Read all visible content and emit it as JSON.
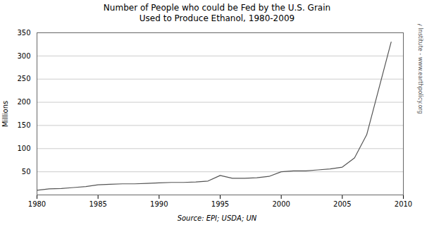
{
  "chart_data": {
    "type": "line",
    "title": "Number of People who could be Fed by the U.S. Grain\nUsed to Produce Ethanol, 1980-2009",
    "ylabel": "Millions",
    "annotations": [
      "Source: EPI; USDA; UN",
      "Earth Policy Institute - www.earthpolicy.org"
    ],
    "x": [
      1980,
      1981,
      1982,
      1983,
      1984,
      1985,
      1986,
      1987,
      1988,
      1989,
      1990,
      1991,
      1992,
      1993,
      1994,
      1995,
      1996,
      1997,
      1998,
      1999,
      2000,
      2001,
      2002,
      2003,
      2004,
      2005,
      2006,
      2007,
      2008,
      2009
    ],
    "values": [
      10,
      13,
      14,
      16,
      18,
      22,
      23,
      24,
      24,
      25,
      26,
      27,
      27,
      28,
      30,
      42,
      36,
      36,
      37,
      40,
      50,
      52,
      52,
      54,
      56,
      60,
      80,
      130,
      230,
      330
    ],
    "color": "#555555",
    "xlim": [
      1980,
      2010
    ],
    "xticks": [
      1980,
      1985,
      1990,
      1995,
      2000,
      2005,
      2010
    ],
    "ylim": [
      0,
      350
    ],
    "yticks": [
      {
        "value": 0,
        "label": null
      },
      50,
      100,
      150,
      200,
      250,
      300,
      350
    ],
    "grid": true
  }
}
